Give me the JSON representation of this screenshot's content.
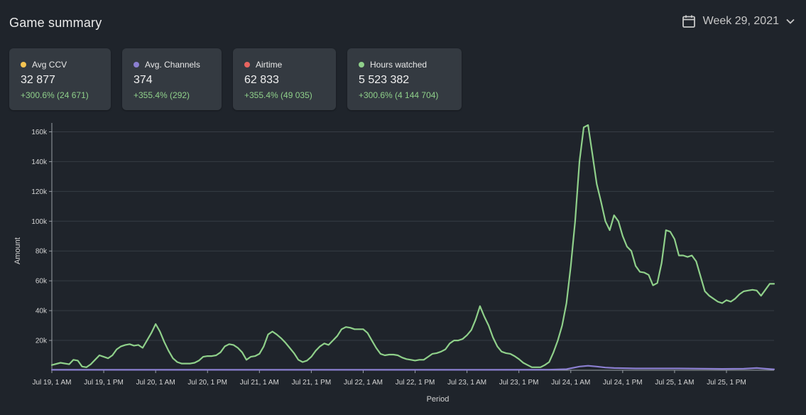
{
  "header": {
    "title": "Game summary",
    "period_label": "Week 29, 2021"
  },
  "cards": [
    {
      "label": "Avg CCV",
      "value": "32 877",
      "change": "+300.6% (24 671)",
      "color": "#f5c451"
    },
    {
      "label": "Avg. Channels",
      "value": "374",
      "change": "+355.4% (292)",
      "color": "#8b7fd1"
    },
    {
      "label": "Airtime",
      "value": "62 833",
      "change": "+355.4% (49 035)",
      "color": "#e8645f"
    },
    {
      "label": "Hours watched",
      "value": "5 523 382",
      "change": "+300.6% (4 144 704)",
      "color": "#8fd08a"
    }
  ],
  "chart_data": {
    "type": "line",
    "xlabel": "Period",
    "ylabel": "Amount",
    "ylim": [
      0,
      165000
    ],
    "y_ticks": [
      "20k",
      "40k",
      "60k",
      "80k",
      "100k",
      "120k",
      "140k",
      "160k"
    ],
    "y_tick_values": [
      20000,
      40000,
      60000,
      80000,
      100000,
      120000,
      140000,
      160000
    ],
    "x_ticks": [
      "Jul 19, 1 AM",
      "Jul 19, 1 PM",
      "Jul 20, 1 AM",
      "Jul 20, 1 PM",
      "Jul 21, 1 AM",
      "Jul 21, 1 PM",
      "Jul 22, 1 AM",
      "Jul 22, 1 PM",
      "Jul 23, 1 AM",
      "Jul 23, 1 PM",
      "Jul 24, 1 AM",
      "Jul 24, 1 PM",
      "Jul 25, 1 AM",
      "Jul 25, 1 PM"
    ],
    "x_tick_hours": [
      0,
      12,
      24,
      36,
      48,
      60,
      72,
      84,
      96,
      108,
      120,
      132,
      144,
      156
    ],
    "x_range_hours": [
      0,
      167
    ],
    "grid": true,
    "series": [
      {
        "color": "#8fd08a",
        "points": [
          [
            0,
            3500
          ],
          [
            2,
            5000
          ],
          [
            4,
            4000
          ],
          [
            5,
            7000
          ],
          [
            6,
            6500
          ],
          [
            7,
            2500
          ],
          [
            8,
            2000
          ],
          [
            9,
            4000
          ],
          [
            10,
            7000
          ],
          [
            11,
            10000
          ],
          [
            12,
            9000
          ],
          [
            13,
            8000
          ],
          [
            14,
            10000
          ],
          [
            15,
            14000
          ],
          [
            16,
            16000
          ],
          [
            17,
            17000
          ],
          [
            18,
            17500
          ],
          [
            19,
            16500
          ],
          [
            20,
            17000
          ],
          [
            21,
            15000
          ],
          [
            22,
            20000
          ],
          [
            23,
            25000
          ],
          [
            24,
            31000
          ],
          [
            25,
            26000
          ],
          [
            26,
            19000
          ],
          [
            27,
            13000
          ],
          [
            28,
            8000
          ],
          [
            29,
            5500
          ],
          [
            30,
            4500
          ],
          [
            31,
            4500
          ],
          [
            32,
            4500
          ],
          [
            33,
            5000
          ],
          [
            34,
            6500
          ],
          [
            35,
            9000
          ],
          [
            36,
            9500
          ],
          [
            37,
            9500
          ],
          [
            38,
            10000
          ],
          [
            39,
            12000
          ],
          [
            40,
            16000
          ],
          [
            41,
            17500
          ],
          [
            42,
            17000
          ],
          [
            43,
            15000
          ],
          [
            44,
            12000
          ],
          [
            45,
            7000
          ],
          [
            46,
            9000
          ],
          [
            47,
            9500
          ],
          [
            48,
            11000
          ],
          [
            49,
            16000
          ],
          [
            50,
            24000
          ],
          [
            51,
            26000
          ],
          [
            52,
            24000
          ],
          [
            53,
            21500
          ],
          [
            54,
            18500
          ],
          [
            55,
            15000
          ],
          [
            56,
            11500
          ],
          [
            57,
            7000
          ],
          [
            58,
            5500
          ],
          [
            59,
            6500
          ],
          [
            60,
            9000
          ],
          [
            61,
            13000
          ],
          [
            62,
            16000
          ],
          [
            63,
            18000
          ],
          [
            64,
            17000
          ],
          [
            65,
            20000
          ],
          [
            66,
            23000
          ],
          [
            67,
            27500
          ],
          [
            68,
            29000
          ],
          [
            69,
            28500
          ],
          [
            70,
            27500
          ],
          [
            71,
            27500
          ],
          [
            72,
            27500
          ],
          [
            73,
            25000
          ],
          [
            74,
            20000
          ],
          [
            75,
            15000
          ],
          [
            76,
            11000
          ],
          [
            77,
            10000
          ],
          [
            78,
            10500
          ],
          [
            79,
            10500
          ],
          [
            80,
            10000
          ],
          [
            81,
            8500
          ],
          [
            82,
            7500
          ],
          [
            83,
            7000
          ],
          [
            84,
            6500
          ],
          [
            85,
            7000
          ],
          [
            86,
            7000
          ],
          [
            87,
            9000
          ],
          [
            88,
            11000
          ],
          [
            89,
            11500
          ],
          [
            90,
            12500
          ],
          [
            91,
            14000
          ],
          [
            92,
            18000
          ],
          [
            93,
            20000
          ],
          [
            94,
            20000
          ],
          [
            95,
            21000
          ],
          [
            96,
            23500
          ],
          [
            97,
            27000
          ],
          [
            98,
            34000
          ],
          [
            99,
            43000
          ],
          [
            100,
            36000
          ],
          [
            101,
            30000
          ],
          [
            102,
            22000
          ],
          [
            103,
            16000
          ],
          [
            104,
            12500
          ],
          [
            105,
            11500
          ],
          [
            106,
            11000
          ],
          [
            107,
            9500
          ],
          [
            108,
            7500
          ],
          [
            109,
            5000
          ],
          [
            110,
            3500
          ],
          [
            111,
            2000
          ],
          [
            112,
            2000
          ],
          [
            113,
            2000
          ],
          [
            114,
            3500
          ],
          [
            115,
            5500
          ],
          [
            116,
            12000
          ],
          [
            117,
            20000
          ],
          [
            118,
            30000
          ],
          [
            119,
            45000
          ],
          [
            120,
            70000
          ],
          [
            121,
            100000
          ],
          [
            122,
            140000
          ],
          [
            123,
            163000
          ],
          [
            124,
            164500
          ],
          [
            125,
            145000
          ],
          [
            126,
            125000
          ],
          [
            127,
            113000
          ],
          [
            128,
            100000
          ],
          [
            129,
            94000
          ],
          [
            130,
            104000
          ],
          [
            131,
            100000
          ],
          [
            132,
            90000
          ],
          [
            133,
            83000
          ],
          [
            134,
            80000
          ],
          [
            135,
            70000
          ],
          [
            136,
            66000
          ],
          [
            137,
            65500
          ],
          [
            138,
            64000
          ],
          [
            139,
            57000
          ],
          [
            140,
            58500
          ],
          [
            141,
            72000
          ],
          [
            142,
            94000
          ],
          [
            143,
            93000
          ],
          [
            144,
            88000
          ],
          [
            145,
            77000
          ],
          [
            146,
            77000
          ],
          [
            147,
            76000
          ],
          [
            148,
            77000
          ],
          [
            149,
            73000
          ],
          [
            150,
            63000
          ],
          [
            151,
            53000
          ],
          [
            152,
            50000
          ],
          [
            153,
            48000
          ],
          [
            154,
            46000
          ],
          [
            155,
            45000
          ],
          [
            156,
            47000
          ],
          [
            157,
            46000
          ],
          [
            158,
            48000
          ],
          [
            159,
            51000
          ],
          [
            160,
            53000
          ],
          [
            161,
            53500
          ],
          [
            162,
            54000
          ],
          [
            163,
            53500
          ],
          [
            164,
            50000
          ],
          [
            165,
            54000
          ],
          [
            166,
            58000
          ],
          [
            167,
            58000
          ]
        ]
      },
      {
        "color": "#8b7fd1",
        "points": [
          [
            0,
            300
          ],
          [
            20,
            300
          ],
          [
            40,
            300
          ],
          [
            60,
            300
          ],
          [
            80,
            300
          ],
          [
            100,
            300
          ],
          [
            115,
            400
          ],
          [
            119,
            700
          ],
          [
            122,
            2500
          ],
          [
            124,
            3000
          ],
          [
            126,
            2500
          ],
          [
            128,
            1800
          ],
          [
            130,
            1500
          ],
          [
            135,
            1200
          ],
          [
            145,
            1200
          ],
          [
            155,
            900
          ],
          [
            160,
            1000
          ],
          [
            163,
            1500
          ],
          [
            165,
            1000
          ],
          [
            167,
            600
          ]
        ]
      }
    ]
  }
}
